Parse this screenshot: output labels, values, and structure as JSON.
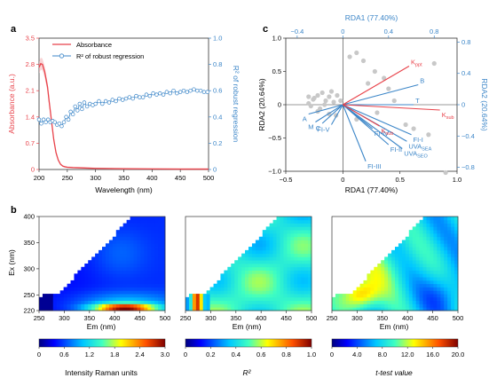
{
  "panels": {
    "a": "a",
    "b": "b",
    "c": "c"
  },
  "chart_data": [
    {
      "id": "a",
      "type": "line",
      "xlabel": "Wavelength (nm)",
      "ylabel_left": "Absorbance (a.u.)",
      "ylabel_right": "R² of robust regression",
      "xlim": [
        200,
        500
      ],
      "ylim_left": [
        0,
        3.5
      ],
      "ylim_right": [
        0,
        1.0
      ],
      "xticks": [
        "200",
        "250",
        "300",
        "350",
        "400",
        "450",
        "500"
      ],
      "yticks_left": [
        "0",
        "0.7",
        "1.4",
        "2.1",
        "2.8",
        "3.5"
      ],
      "yticks_right": [
        "0",
        "0.2",
        "0.4",
        "0.6",
        "0.8",
        "1.0"
      ],
      "legend": {
        "position": "top-right",
        "entries": [
          "Absorbance",
          "R² of robust regression"
        ]
      },
      "colors": {
        "absorbance": "#e8424a",
        "r2": "#3c86c8"
      },
      "series": [
        {
          "name": "Absorbance",
          "axis": "left",
          "x": [
            200,
            203,
            206,
            210,
            215,
            218,
            222,
            226,
            230,
            234,
            238,
            242,
            246,
            250,
            260,
            280,
            300,
            350,
            400,
            450,
            500
          ],
          "y": [
            2.72,
            2.82,
            2.8,
            2.6,
            2.2,
            1.8,
            1.3,
            0.8,
            0.45,
            0.25,
            0.14,
            0.09,
            0.07,
            0.06,
            0.05,
            0.04,
            0.03,
            0.02,
            0.015,
            0.01,
            0.01
          ]
        },
        {
          "name": "R² of robust regression",
          "axis": "right",
          "x": [
            200,
            204,
            208,
            212,
            216,
            220,
            224,
            228,
            232,
            236,
            240,
            244,
            248,
            252,
            256,
            260,
            264,
            268,
            272,
            276,
            280,
            285,
            290,
            295,
            300,
            306,
            312,
            318,
            324,
            330,
            336,
            342,
            348,
            354,
            360,
            366,
            372,
            378,
            384,
            390,
            396,
            402,
            408,
            414,
            420,
            426,
            432,
            438,
            444,
            450,
            456,
            462,
            468,
            474,
            480,
            486,
            492,
            498
          ],
          "y": [
            0.38,
            0.35,
            0.38,
            0.36,
            0.38,
            0.36,
            0.37,
            0.36,
            0.34,
            0.35,
            0.33,
            0.36,
            0.4,
            0.38,
            0.44,
            0.42,
            0.48,
            0.45,
            0.5,
            0.46,
            0.51,
            0.48,
            0.5,
            0.49,
            0.5,
            0.52,
            0.5,
            0.52,
            0.51,
            0.53,
            0.52,
            0.54,
            0.53,
            0.54,
            0.55,
            0.54,
            0.56,
            0.55,
            0.55,
            0.57,
            0.56,
            0.58,
            0.57,
            0.58,
            0.57,
            0.59,
            0.58,
            0.6,
            0.58,
            0.59,
            0.6,
            0.59,
            0.6,
            0.61,
            0.6,
            0.6,
            0.59,
            0.59
          ]
        }
      ]
    },
    {
      "id": "c",
      "type": "scatter",
      "subtype": "rda-biplot",
      "xlabel_bottom": "RDA1 (77.40%)",
      "xlabel_top": "RDA1 (77.40%)",
      "ylabel_left": "RDA2 (20.64%)",
      "ylabel_right": "RDA2 (20.64%)",
      "xlim": [
        -0.5,
        1.0
      ],
      "ylim": [
        -1.0,
        1.0
      ],
      "xticks_bottom": [
        "−0.5",
        "0",
        "0.5",
        "1.0"
      ],
      "yticks_left": [
        "−1.0",
        "−0.5",
        "0",
        "0.5",
        "1.0"
      ],
      "xticks_top": [
        "−0.4",
        "0",
        "0.4",
        "0.8"
      ],
      "yticks_right": [
        "−0.8",
        "−0.4",
        "0",
        "0.4",
        "0.8"
      ],
      "sites": {
        "x": [
          -0.3,
          -0.25,
          -0.22,
          -0.28,
          -0.18,
          -0.12,
          -0.08,
          -0.2,
          -0.15,
          -0.1,
          -0.26,
          -0.05,
          -0.22,
          -0.16,
          -0.3,
          -0.12,
          -0.02,
          0.06,
          0.12,
          0.18,
          0.28,
          0.36,
          0.22,
          0.45,
          0.3,
          0.55,
          0.62,
          0.12,
          0.75,
          0.8,
          0.9,
          -0.06,
          0.4
        ],
        "y": [
          0.02,
          0.1,
          0.14,
          -0.02,
          0.18,
          0.12,
          0.04,
          -0.06,
          0.06,
          0.2,
          0.08,
          0.14,
          -0.1,
          0.0,
          0.12,
          -0.14,
          0.06,
          0.72,
          0.78,
          0.66,
          0.5,
          0.4,
          0.32,
          0.06,
          -0.12,
          -0.3,
          -0.36,
          -0.22,
          -0.45,
          0.62,
          -1.02,
          -0.16,
          0.24
        ]
      },
      "env_vectors": [
        {
          "label": "K_ppt",
          "x": 0.58,
          "y": 0.58
        },
        {
          "label": "K_sub_2",
          "x": 0.85,
          "y": -0.08
        },
        {
          "label": "K_sub_1",
          "x": 0.32,
          "y": -0.32
        }
      ],
      "species_vectors": [
        {
          "label": "B",
          "x": 0.66,
          "y": 0.3
        },
        {
          "label": "T",
          "x": 0.62,
          "y": 0.0
        },
        {
          "label": "A",
          "x": -0.3,
          "y": -0.14
        },
        {
          "label": "M",
          "x": -0.24,
          "y": -0.26
        },
        {
          "label": "C",
          "x": -0.18,
          "y": -0.28
        },
        {
          "label": "FI-V",
          "x": -0.1,
          "y": -0.3
        },
        {
          "label": "FI-IV",
          "x": 0.26,
          "y": -0.36
        },
        {
          "label": "FI-I",
          "x": 0.6,
          "y": -0.45
        },
        {
          "label": "UVA_SEA",
          "x": 0.56,
          "y": -0.55
        },
        {
          "label": "UVA_SEO",
          "x": 0.52,
          "y": -0.66
        },
        {
          "label": "FI-II",
          "x": 0.4,
          "y": -0.6
        },
        {
          "label": "FI-III",
          "x": 0.2,
          "y": -0.85
        }
      ],
      "colors": {
        "env": "#e8424a",
        "species": "#3c86c8",
        "sites": "#c8c8c8"
      }
    },
    {
      "id": "b1",
      "type": "heatmap",
      "xlabel": "Em (nm)",
      "ylabel": "Ex (nm)",
      "xlim": [
        250,
        500
      ],
      "ylim": [
        220,
        400
      ],
      "xticks": [
        "250",
        "300",
        "350",
        "400",
        "450",
        "500"
      ],
      "yticks": [
        "220",
        "250",
        "300",
        "350",
        "400"
      ],
      "colorbar": {
        "label": "Intensity Raman units",
        "min": 0,
        "max": 3.0,
        "ticks": [
          "0",
          "0.6",
          "1.2",
          "1.8",
          "2.4",
          "3.0"
        ]
      }
    },
    {
      "id": "b2",
      "type": "heatmap",
      "xlabel": "Em (nm)",
      "xlim": [
        250,
        500
      ],
      "ylim": [
        220,
        400
      ],
      "xticks": [
        "250",
        "300",
        "350",
        "400",
        "450",
        "500"
      ],
      "colorbar": {
        "label": "R²",
        "min": 0,
        "max": 1.0,
        "ticks": [
          "0",
          "0.2",
          "0.4",
          "0.6",
          "0.8",
          "1.0"
        ]
      }
    },
    {
      "id": "b3",
      "type": "heatmap",
      "xlabel": "Em (nm)",
      "xlim": [
        250,
        500
      ],
      "ylim": [
        220,
        400
      ],
      "xticks": [
        "250",
        "300",
        "350",
        "400",
        "450",
        "500"
      ],
      "colorbar": {
        "label": "t-test value",
        "min": 0,
        "max": 20.0,
        "ticks": [
          "0",
          "4.0",
          "8.0",
          "12.0",
          "16.0",
          "20.0"
        ]
      }
    }
  ]
}
